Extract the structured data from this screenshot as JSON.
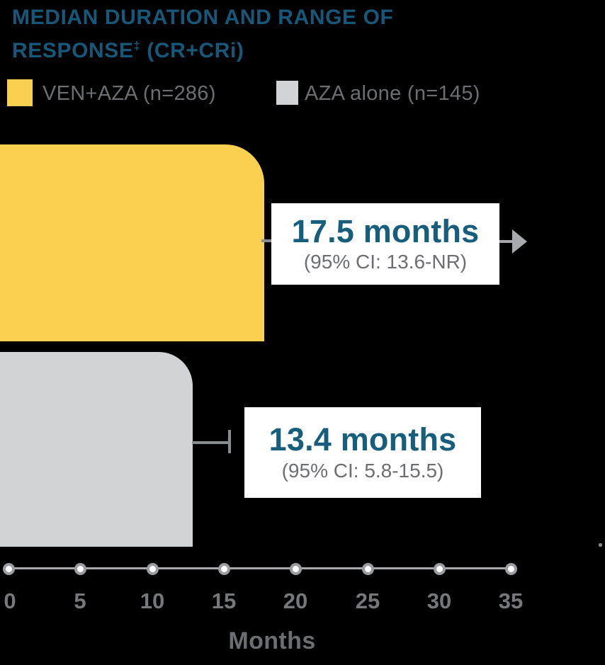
{
  "title": {
    "line1": "MEDIAN DURATION AND RANGE OF",
    "line2_pre": "RESPONSE",
    "line2_sup": "‡",
    "line2_post": " (CR+CRi)"
  },
  "legend": {
    "items": [
      {
        "label": "VEN+AZA (n=286)",
        "swatch_color": "#FAD051"
      },
      {
        "label": "AZA alone (n=145)",
        "swatch_color": "#D1D3D4"
      }
    ]
  },
  "bars": [
    {
      "name": "VEN+AZA (n=286)",
      "value_label": "17.5 months",
      "ci_label": "(95% CI: 13.6-NR)"
    },
    {
      "name": "AZA alone (n=145)",
      "value_label": "13.4 months",
      "ci_label": "(95% CI: 5.8-15.5)"
    }
  ],
  "axis": {
    "ticks": [
      "0",
      "5",
      "10",
      "15",
      "20",
      "25",
      "30",
      "35"
    ],
    "label": "Months"
  },
  "colors": {
    "title_teal": "#17587A",
    "value_teal": "#175E7D",
    "ven_yellow": "#FAD051",
    "aza_gray": "#D1D3D4",
    "text_gray": "#6D6E71",
    "tick_gray": "#77787B",
    "axis_gray": "#A7A9AC",
    "connector_gray": "#8A8D90",
    "background": "#000000",
    "label_box_bg": "#FFFFFF"
  },
  "chart_data": {
    "type": "bar",
    "orientation": "horizontal",
    "title": "MEDIAN DURATION AND RANGE OF RESPONSE‡ (CR+CRi)",
    "xlabel": "Months",
    "xlim": [
      0,
      35
    ],
    "x_ticks": [
      0,
      5,
      10,
      15,
      20,
      25,
      30,
      35
    ],
    "grid": false,
    "legend_position": "top",
    "categories": [
      "VEN+AZA (n=286)",
      "AZA alone (n=145)"
    ],
    "series": [
      {
        "name": "VEN+AZA (n=286)",
        "median_months": 17.5,
        "ci_low": 13.6,
        "ci_high": "NR",
        "annotation": "17.5 months (95% CI: 13.6-NR)",
        "color": "#FAD051",
        "upper_bound_not_reached_arrow": true
      },
      {
        "name": "AZA alone (n=145)",
        "median_months": 13.4,
        "ci_low": 5.8,
        "ci_high": 15.5,
        "annotation": "13.4 months (95% CI: 5.8-15.5)",
        "color": "#D1D3D4",
        "upper_bound_not_reached_arrow": false
      }
    ]
  }
}
